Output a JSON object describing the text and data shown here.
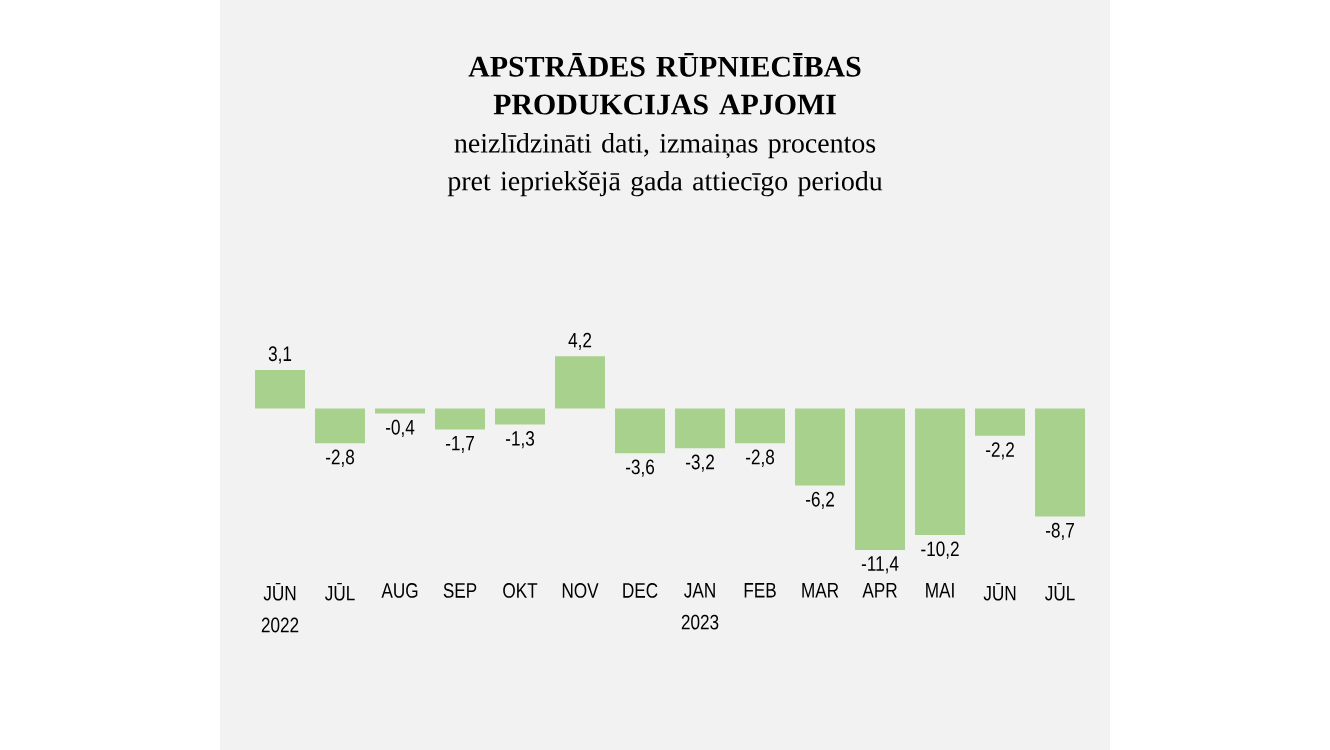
{
  "chart_data": {
    "type": "bar",
    "title": "APSTRĀDES RŪPNIECĪBAS PRODUKCIJAS APJOMI",
    "subtitle": "neizlīdzināti dati, izmaiņas procentos pret iepriekšējā gada attiecīgo periodu",
    "categories": [
      "JŪN 2022",
      "JŪL",
      "AUG",
      "SEP",
      "OKT",
      "NOV",
      "DEC",
      "JAN 2023",
      "FEB",
      "MAR",
      "APR",
      "MAI",
      "JŪN",
      "JŪL"
    ],
    "values": [
      3.1,
      -2.8,
      -0.4,
      -1.7,
      -1.3,
      4.2,
      -3.6,
      -3.2,
      -2.8,
      -6.2,
      -11.4,
      -10.2,
      -2.2,
      -8.7
    ],
    "value_labels": [
      "3,1",
      "-2,8",
      "-0,4",
      "-1,7",
      "-1,3",
      "4,2",
      "-3,6",
      "-3,2",
      "-2,8",
      "-6,2",
      "-11,4",
      "-10,2",
      "-2,2",
      "-8,7"
    ],
    "color": "#a9d18e"
  }
}
